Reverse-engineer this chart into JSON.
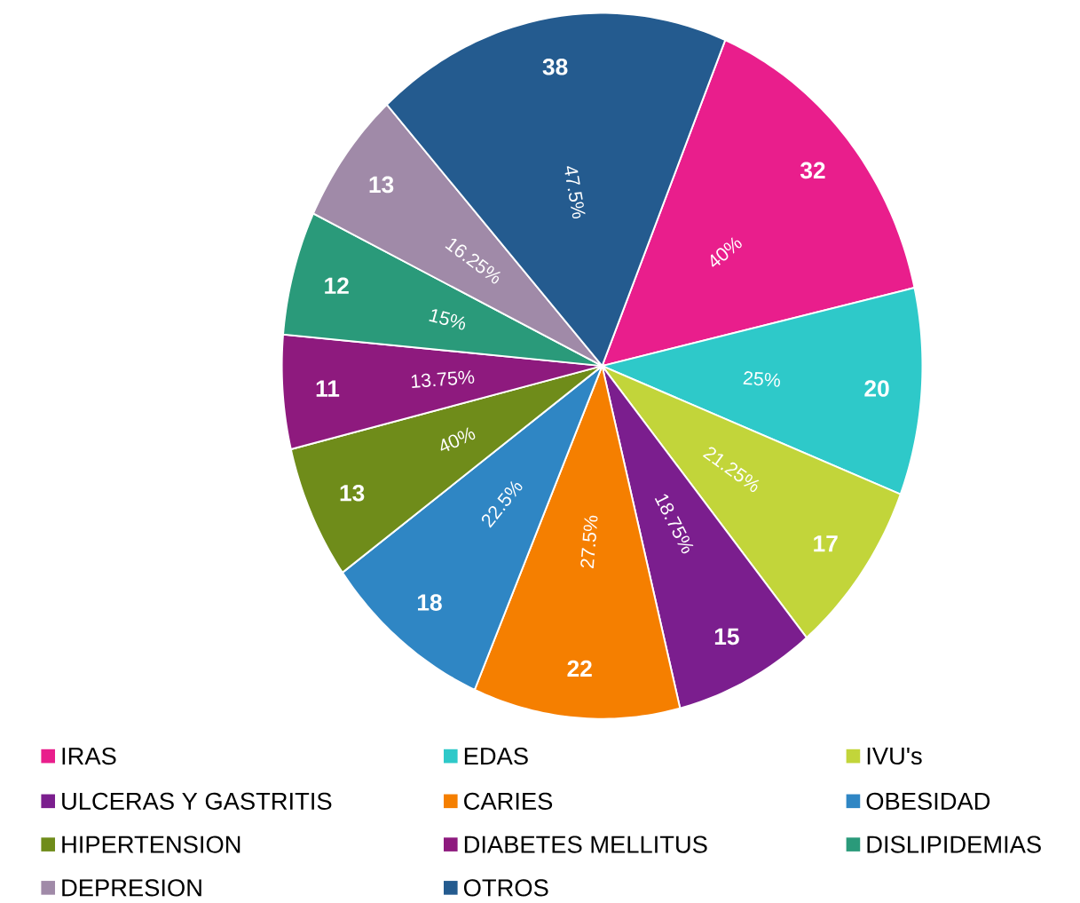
{
  "chart_data": {
    "type": "pie",
    "categories": [
      "IRAS",
      "EDAS",
      "IVU's",
      "ULCERAS Y GASTRITIS",
      "CARIES",
      "OBESIDAD",
      "HIPERTENSION",
      "DIABETES MELLITUS",
      "DISLIPIDEMIAS",
      "DEPRESION",
      "OTROS"
    ],
    "values": [
      32,
      20,
      17,
      15,
      22,
      18,
      13,
      11,
      12,
      13,
      38
    ],
    "colors": [
      "#e91e8c",
      "#2ec9c9",
      "#c2d53a",
      "#7b1e8e",
      "#f57f00",
      "#2f86c4",
      "#6f8c1a",
      "#8e1a7e",
      "#2a9a7a",
      "#a08aa8",
      "#245b8f"
    ],
    "annotations": [
      "40%",
      "25%",
      "21.25%",
      "18.75%",
      "27.5%",
      "22.5%",
      "40%",
      "13.75%",
      "15%",
      "16.25%",
      "47.5%"
    ],
    "data_labels": true,
    "legend": "bottom"
  }
}
